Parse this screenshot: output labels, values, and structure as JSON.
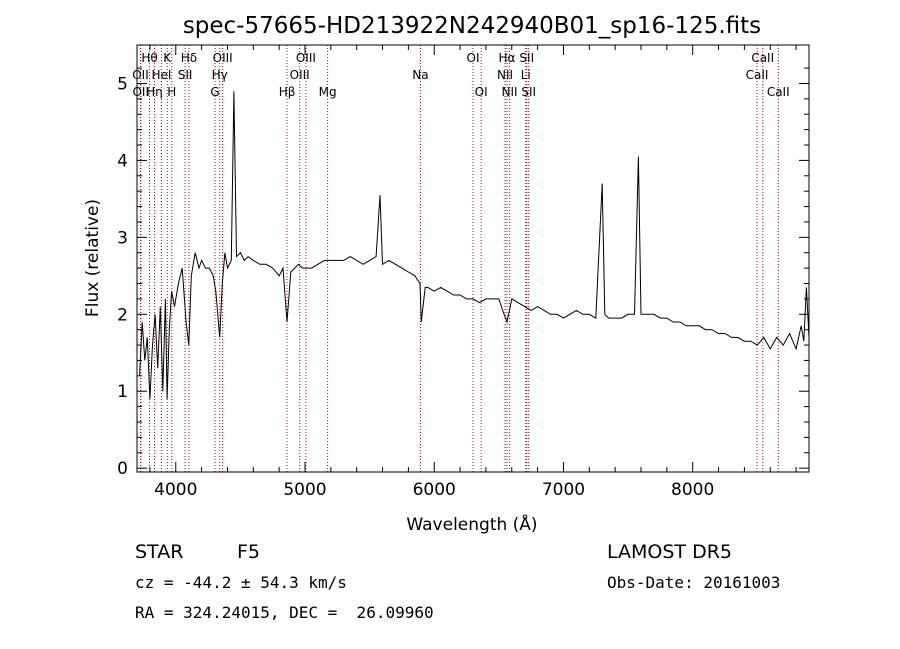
{
  "chart_data": {
    "type": "line",
    "title": "spec-57665-HD213922N242940B01_sp16-125.fits",
    "xlabel": "Wavelength (Å)",
    "ylabel": "Flux (relative)",
    "xlim": [
      3700,
      8900
    ],
    "ylim": [
      -0.05,
      5.5
    ],
    "x_ticks": [
      4000,
      5000,
      6000,
      7000,
      8000
    ],
    "x_tick_labels": [
      "4000",
      "5000",
      "6000",
      "7000",
      "8000"
    ],
    "y_ticks": [
      0,
      1,
      2,
      3,
      4,
      5
    ],
    "y_tick_labels": [
      "0",
      "1",
      "2",
      "3",
      "4",
      "5"
    ],
    "grid": false,
    "series": [
      {
        "x": [
          3720,
          3740,
          3760,
          3780,
          3800,
          3820,
          3840,
          3860,
          3880,
          3900,
          3920,
          3933,
          3950,
          3968,
          3990,
          4020,
          4050,
          4080,
          4101,
          4120,
          4150,
          4180,
          4200,
          4230,
          4260,
          4290,
          4310,
          4340,
          4360,
          4380,
          4400,
          4430,
          4450,
          4470,
          4500,
          4530,
          4560,
          4600,
          4650,
          4700,
          4750,
          4800,
          4830,
          4861,
          4890,
          4920,
          4950,
          4980,
          5010,
          5050,
          5100,
          5150,
          5200,
          5250,
          5300,
          5350,
          5400,
          5450,
          5500,
          5550,
          5580,
          5600,
          5650,
          5700,
          5750,
          5800,
          5850,
          5890,
          5900,
          5930,
          5950,
          6000,
          6050,
          6100,
          6150,
          6200,
          6250,
          6300,
          6350,
          6400,
          6450,
          6500,
          6530,
          6563,
          6600,
          6650,
          6700,
          6750,
          6800,
          6850,
          6900,
          6950,
          7000,
          7050,
          7100,
          7150,
          7200,
          7250,
          7300,
          7320,
          7350,
          7400,
          7450,
          7500,
          7550,
          7580,
          7600,
          7650,
          7700,
          7750,
          7800,
          7850,
          7900,
          7950,
          8000,
          8050,
          8100,
          8150,
          8200,
          8250,
          8300,
          8350,
          8400,
          8450,
          8500,
          8550,
          8600,
          8650,
          8700,
          8750,
          8800,
          8840,
          8860,
          8880,
          8900
        ],
        "y": [
          1.2,
          1.9,
          1.4,
          1.7,
          0.9,
          1.6,
          2.0,
          1.3,
          2.1,
          1.0,
          2.2,
          0.9,
          1.8,
          2.3,
          2.1,
          2.4,
          2.6,
          1.9,
          1.6,
          2.5,
          2.8,
          2.6,
          2.7,
          2.6,
          2.6,
          2.5,
          2.3,
          1.7,
          2.4,
          2.8,
          2.6,
          2.7,
          4.9,
          2.75,
          2.8,
          2.7,
          2.75,
          2.7,
          2.65,
          2.65,
          2.6,
          2.5,
          2.6,
          1.9,
          2.55,
          2.6,
          2.65,
          2.6,
          2.6,
          2.6,
          2.65,
          2.7,
          2.7,
          2.7,
          2.7,
          2.75,
          2.7,
          2.65,
          2.7,
          2.75,
          3.55,
          2.65,
          2.7,
          2.65,
          2.6,
          2.55,
          2.5,
          2.4,
          1.9,
          2.35,
          2.35,
          2.3,
          2.35,
          2.3,
          2.25,
          2.25,
          2.2,
          2.2,
          2.15,
          2.2,
          2.2,
          2.2,
          2.05,
          1.9,
          2.2,
          2.15,
          2.1,
          2.05,
          2.1,
          2.05,
          2.0,
          2.0,
          1.95,
          2.0,
          2.05,
          2.0,
          2.0,
          1.95,
          3.7,
          2.0,
          1.95,
          1.95,
          1.95,
          2.0,
          2.0,
          4.05,
          2.0,
          2.0,
          2.0,
          1.95,
          1.95,
          1.9,
          1.9,
          1.85,
          1.85,
          1.85,
          1.8,
          1.8,
          1.75,
          1.75,
          1.7,
          1.7,
          1.65,
          1.65,
          1.6,
          1.7,
          1.55,
          1.7,
          1.6,
          1.75,
          1.55,
          1.85,
          1.65,
          2.35,
          1.7
        ]
      }
    ],
    "line_markers": [
      {
        "label": "Hθ",
        "wavelength": 3797,
        "row": 0
      },
      {
        "label": "OII",
        "wavelength": 3727,
        "row": 1
      },
      {
        "label": "OII",
        "wavelength": 3729,
        "row": 2
      },
      {
        "label": "Hη",
        "wavelength": 3835,
        "row": 2
      },
      {
        "label": "K",
        "wavelength": 3934,
        "row": 0
      },
      {
        "label": "HeI",
        "wavelength": 3889,
        "row": 1
      },
      {
        "label": "H",
        "wavelength": 3969,
        "row": 2
      },
      {
        "label": "Hδ",
        "wavelength": 4102,
        "row": 0
      },
      {
        "label": "SII",
        "wavelength": 4072,
        "row": 1
      },
      {
        "label": "OIII",
        "wavelength": 4363,
        "row": 0
      },
      {
        "label": "Hγ",
        "wavelength": 4340,
        "row": 1
      },
      {
        "label": "G",
        "wavelength": 4304,
        "row": 2
      },
      {
        "label": "OIII",
        "wavelength": 5007,
        "row": 0
      },
      {
        "label": "OIII",
        "wavelength": 4959,
        "row": 1
      },
      {
        "label": "Hβ",
        "wavelength": 4861,
        "row": 2
      },
      {
        "label": "Mg",
        "wavelength": 5175,
        "row": 2
      },
      {
        "label": "Na",
        "wavelength": 5893,
        "row": 1
      },
      {
        "label": "OI",
        "wavelength": 6300,
        "row": 0
      },
      {
        "label": "OI",
        "wavelength": 6363,
        "row": 2
      },
      {
        "label": "Hα",
        "wavelength": 6563,
        "row": 0
      },
      {
        "label": "NII",
        "wavelength": 6548,
        "row": 1
      },
      {
        "label": "NII",
        "wavelength": 6583,
        "row": 2
      },
      {
        "label": "SII",
        "wavelength": 6716,
        "row": 0
      },
      {
        "label": "Li",
        "wavelength": 6708,
        "row": 1
      },
      {
        "label": "SII",
        "wavelength": 6731,
        "row": 2
      },
      {
        "label": "CaII",
        "wavelength": 8542,
        "row": 0
      },
      {
        "label": "CaII",
        "wavelength": 8498,
        "row": 1
      },
      {
        "label": "CaII",
        "wavelength": 8662,
        "row": 2
      }
    ],
    "colors": {
      "spectrum": "#000000",
      "line_markers": "#c00000",
      "axes": "#000000"
    }
  },
  "info": {
    "object_class": "STAR",
    "subclass": "F5",
    "survey": "LAMOST DR5",
    "velocity": "cz = -44.2 ± 54.3 km/s",
    "obs_date": "Obs-Date: 20161003",
    "coords": "RA = 324.24015, DEC =  26.09960"
  }
}
